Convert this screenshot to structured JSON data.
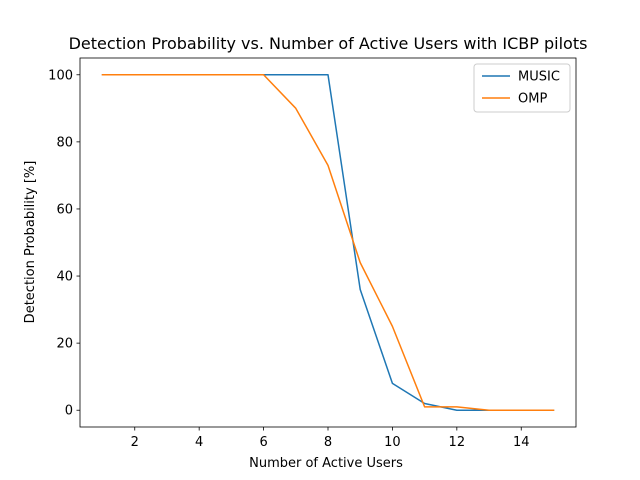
{
  "chart_data": {
    "type": "line",
    "title": "Detection Probability vs. Number of Active Users with ICBP pilots",
    "xlabel": "Number of Active Users",
    "ylabel": "Detection Probability [%]",
    "xlim": [
      0.3,
      15.7
    ],
    "ylim": [
      -5,
      105
    ],
    "xticks": [
      2,
      4,
      6,
      8,
      10,
      12,
      14
    ],
    "yticks": [
      0,
      20,
      40,
      60,
      80,
      100
    ],
    "grid": false,
    "legend_position": "upper right",
    "x": [
      1,
      2,
      3,
      4,
      5,
      6,
      7,
      8,
      9,
      10,
      11,
      12,
      13,
      14,
      15
    ],
    "series": [
      {
        "name": "MUSIC",
        "color": "#1f77b4",
        "values": [
          100,
          100,
          100,
          100,
          100,
          100,
          100,
          100,
          36,
          8,
          2,
          0,
          0,
          0,
          0
        ]
      },
      {
        "name": "OMP",
        "color": "#ff7f0e",
        "values": [
          100,
          100,
          100,
          100,
          100,
          100,
          90,
          73,
          44,
          25,
          1,
          1,
          0,
          0,
          0
        ]
      }
    ]
  }
}
